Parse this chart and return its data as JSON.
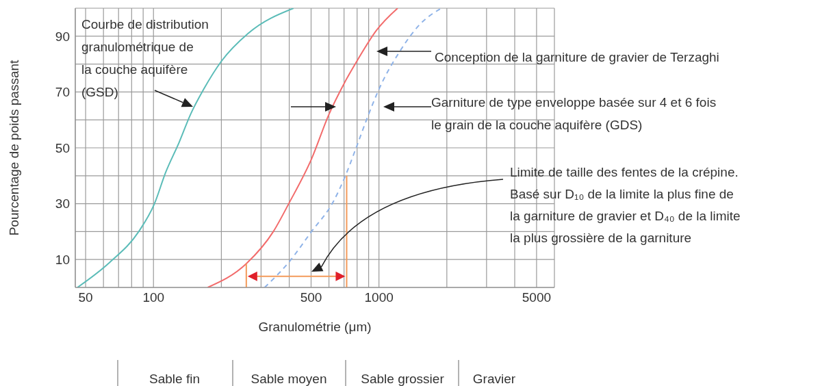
{
  "chart_data": {
    "type": "line",
    "xlabel": "Granulométrie (μm)",
    "ylabel": "Pourcentage de poids passant",
    "log": "x",
    "grid": true,
    "xlim": [
      45,
      6000
    ],
    "xticks": [
      50,
      {
        "value": 60,
        "label": null
      },
      {
        "value": 70,
        "label": null
      },
      {
        "value": 80,
        "label": null
      },
      {
        "value": 90,
        "label": null
      },
      100,
      {
        "value": 200,
        "label": null
      },
      {
        "value": 300,
        "label": null
      },
      {
        "value": 400,
        "label": null
      },
      500,
      {
        "value": 600,
        "label": null
      },
      {
        "value": 700,
        "label": null
      },
      {
        "value": 800,
        "label": null
      },
      {
        "value": 900,
        "label": null
      },
      1000,
      {
        "value": 2000,
        "label": null
      },
      {
        "value": 3000,
        "label": null
      },
      {
        "value": 4000,
        "label": null
      },
      5000
    ],
    "ylim": [
      0,
      100
    ],
    "yticks": [
      10,
      {
        "value": 20,
        "label": null
      },
      30,
      {
        "value": 40,
        "label": null
      },
      50,
      {
        "value": 60,
        "label": null
      },
      70,
      {
        "value": 80,
        "label": null
      },
      90
    ],
    "series": [
      {
        "color": "#5bbcb8",
        "line_style": "solid",
        "x": [
          46,
          64,
          86,
          101,
          113,
          130,
          146,
          167,
          200,
          263,
          418
        ],
        "values": [
          0,
          9,
          20,
          30,
          41,
          52,
          62,
          71,
          81,
          91,
          100
        ]
      },
      {
        "color": "#f26b6b",
        "line_style": "solid",
        "x": [
          174,
          258,
          340,
          398,
          502,
          600,
          700,
          811,
          973,
          1210
        ],
        "values": [
          0,
          8.5,
          20,
          30,
          46,
          62,
          73,
          82,
          92,
          100
        ]
      },
      {
        "color": "#8fb3e8",
        "line_style": "dashed",
        "x": [
          311,
          398,
          502,
          630,
          710,
          792,
          890,
          1000,
          1225,
          1510,
          1890
        ],
        "values": [
          0,
          9,
          20,
          31,
          40,
          50,
          61,
          71,
          84,
          94,
          100
        ]
      },
      {
        "color": "#f39a5a",
        "line_style": "solid",
        "x": [
          258,
          258
        ],
        "values": [
          0,
          8.5
        ]
      },
      {
        "color": "#f39a5a",
        "line_style": "solid",
        "x": [
          719,
          719
        ],
        "values": [
          0,
          40
        ]
      }
    ],
    "annotations": [
      "Courbe de distribution\ngranulométrique de\nla couche aquifère\n(GSD)",
      "Conception de la garniture de gravier de Terzaghi",
      "Garniture de type enveloppe basée sur 4 et 6 fois\nle grain de la couche aquifère (GDS)",
      "Limite de taille des fentes de la crépine.\nBasé sur D₁₀ de la limite la plus fine de\nla garniture de gravier et D₄₀ de la limite\nla plus grossière de la garniture",
      "Sable fin",
      "Sable moyen",
      "Sable grossier",
      "Gravier"
    ]
  }
}
